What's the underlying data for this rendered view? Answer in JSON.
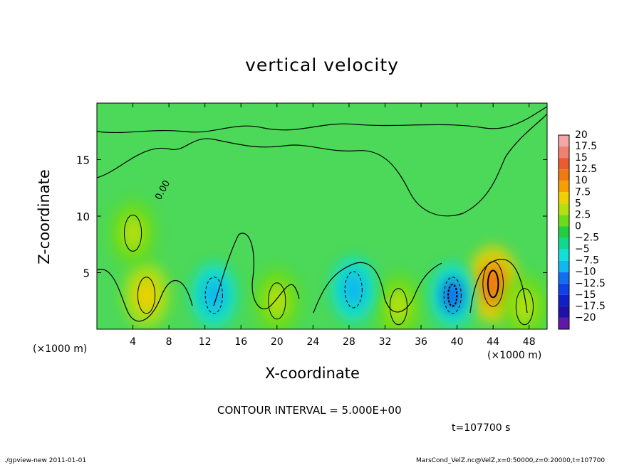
{
  "chart_data": {
    "type": "heatmap",
    "title": "vertical velocity",
    "xlabel": "X-coordinate",
    "ylabel": "Z-coordinate",
    "xunit_left": "(×1000 m)",
    "xunit_right": "(×1000 m)",
    "xlim": [
      0,
      50
    ],
    "ylim": [
      0,
      20
    ],
    "xticks": [
      "4",
      "8",
      "12",
      "16",
      "20",
      "24",
      "28",
      "32",
      "36",
      "40",
      "44",
      "48"
    ],
    "xtick_values": [
      4,
      8,
      12,
      16,
      20,
      24,
      28,
      32,
      36,
      40,
      44,
      48
    ],
    "yticks": [
      "5",
      "10",
      "15"
    ],
    "ytick_values": [
      5,
      10,
      15
    ],
    "contour_label": "0.00",
    "colorbar": {
      "labels": [
        "20",
        "17.5",
        "15",
        "12.5",
        "10",
        "7.5",
        "5",
        "2.5",
        "0",
        "−2.5",
        "−5",
        "−7.5",
        "−10",
        "−12.5",
        "−15",
        "−17.5",
        "−20"
      ],
      "colors": [
        "#f6a6a6",
        "#f08070",
        "#ee5a30",
        "#f07a10",
        "#f5a000",
        "#f0d000",
        "#b4e010",
        "#6cdc18",
        "#20d040",
        "#10d890",
        "#10e0d8",
        "#10b8f0",
        "#1070f0",
        "#1040e8",
        "#1020c8",
        "#2010a8",
        "#6018a8"
      ]
    },
    "features": [
      {
        "kind": "updraft",
        "x": 44,
        "z": 4,
        "peak": 12.5
      },
      {
        "kind": "updraft",
        "x": 5.5,
        "z": 3,
        "peak": 7.5
      },
      {
        "kind": "updraft",
        "x": 20,
        "z": 2.5,
        "peak": 5
      },
      {
        "kind": "updraft",
        "x": 33.5,
        "z": 2,
        "peak": 5
      },
      {
        "kind": "updraft",
        "x": 47.5,
        "z": 2,
        "peak": 5
      },
      {
        "kind": "updraft",
        "x": 4,
        "z": 8.5,
        "peak": 5
      },
      {
        "kind": "downdraft",
        "x": 13,
        "z": 3,
        "peak": -7.5
      },
      {
        "kind": "downdraft",
        "x": 28.5,
        "z": 3.5,
        "peak": -7.5
      },
      {
        "kind": "downdraft",
        "x": 39.5,
        "z": 3,
        "peak": -10
      }
    ]
  },
  "annotations": {
    "contour_interval": "CONTOUR INTERVAL = 5.000E+00",
    "time": "t=107700 s"
  },
  "footer": {
    "left": "./gpview-new  2011-01-01",
    "right": "MarsCond_VelZ.nc@VelZ,x=0:50000,z=0:20000,t=107700"
  }
}
